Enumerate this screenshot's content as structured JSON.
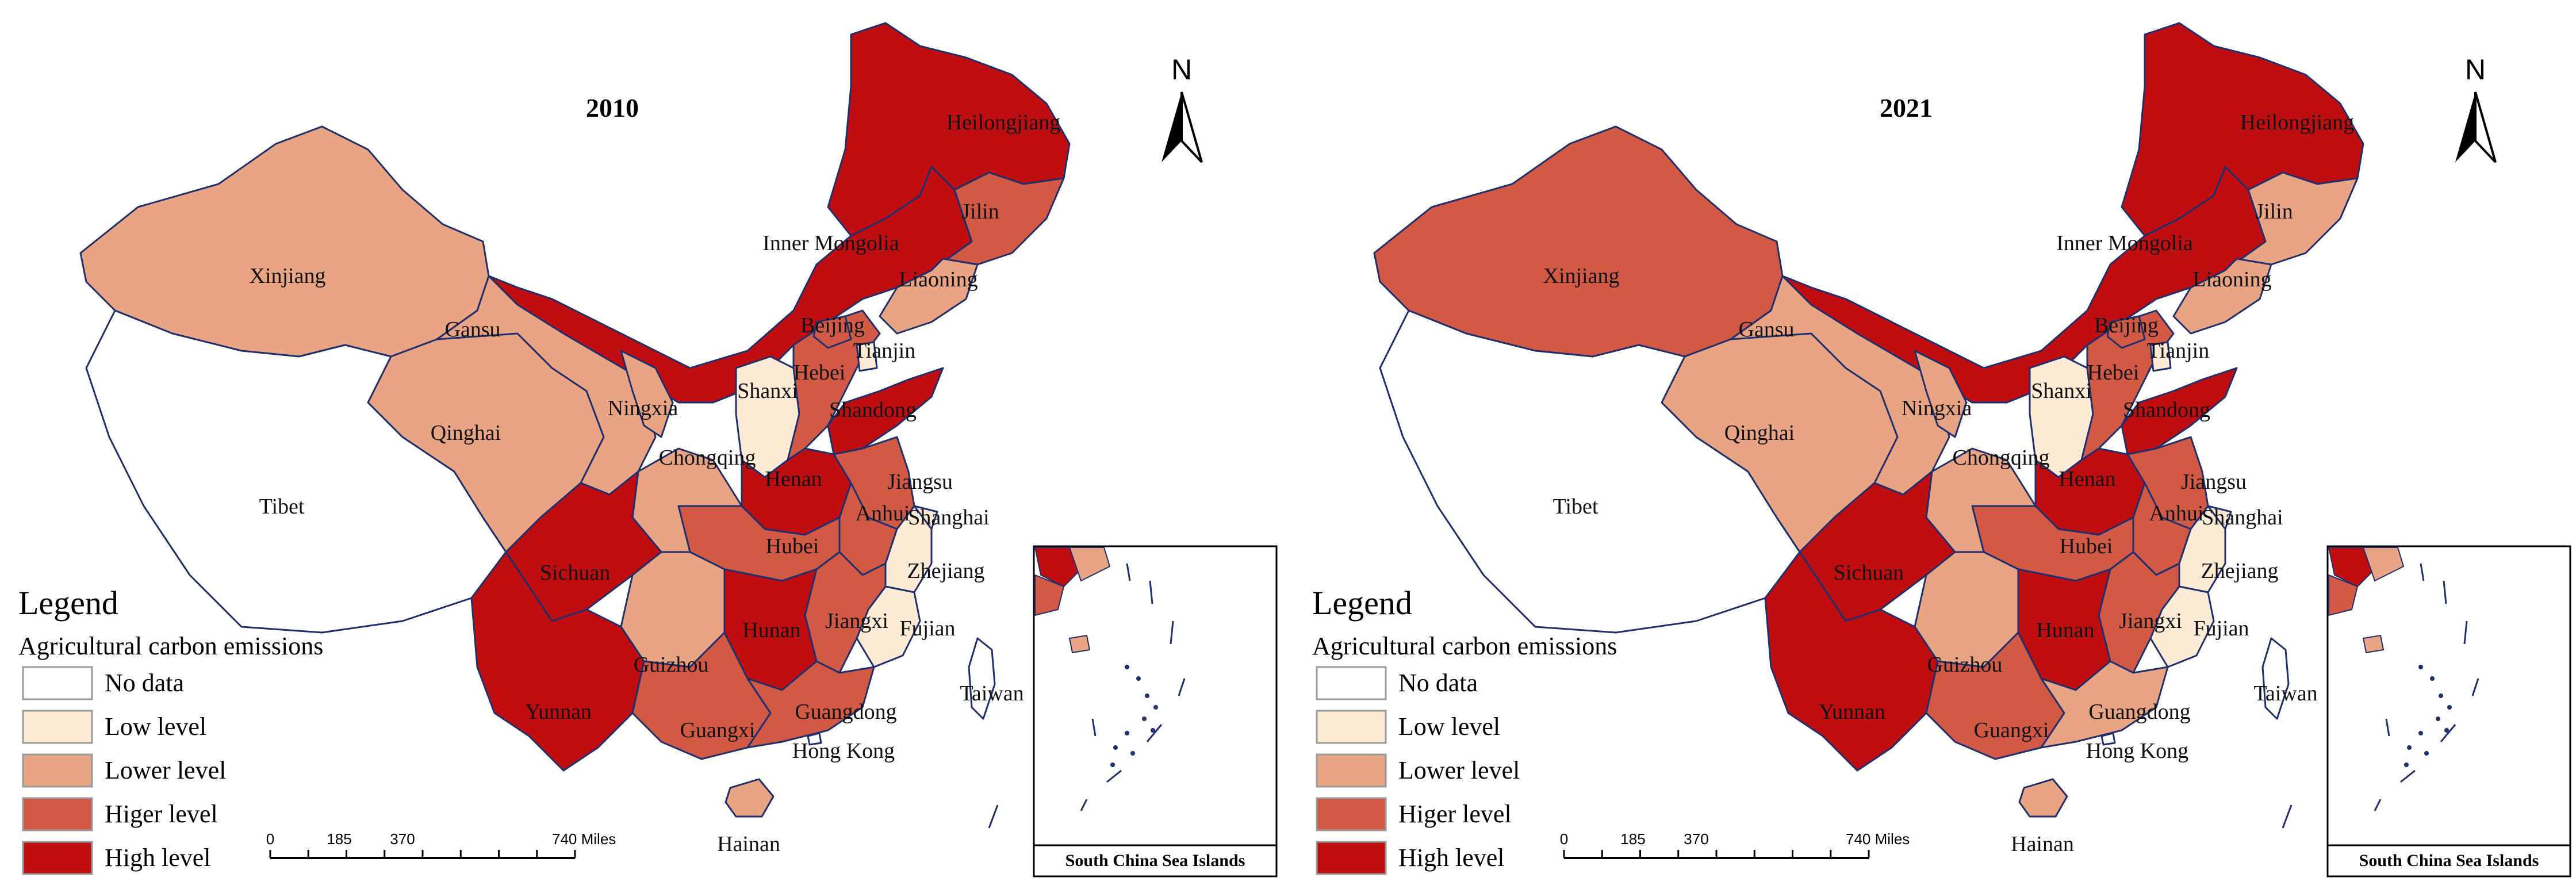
{
  "colors": {
    "no_data": "#ffffff",
    "low": "#fdebd6",
    "lower": "#e9a583",
    "higher": "#d25a45",
    "high": "#c00d10",
    "border": "#1f2f6e"
  },
  "legend": {
    "title": "Legend",
    "subtitle": "Agricultural carbon emissions",
    "items": [
      {
        "key": "no_data",
        "label": "No data"
      },
      {
        "key": "low",
        "label": "Low level"
      },
      {
        "key": "lower",
        "label": "Lower level"
      },
      {
        "key": "higher",
        "label": "Higer level"
      },
      {
        "key": "high",
        "label": "High level"
      }
    ]
  },
  "scale_bar": {
    "ticks": [
      "0",
      "185",
      "370",
      "740 Miles"
    ]
  },
  "north_label": "N",
  "inset_title": "South China Sea Islands",
  "maps": [
    {
      "year": "2010",
      "regions": {
        "Heilongjiang": "high",
        "Jilin": "higher",
        "Liaoning": "lower",
        "Inner Mongolia": "high",
        "Xinjiang": "lower",
        "Tibet": "no_data",
        "Qinghai": "lower",
        "Gansu": "lower",
        "Ningxia": "lower",
        "Shanxi": "low",
        "Beijing": "higher",
        "Tianjin": "low",
        "Hebei": "higher",
        "Shandong": "high",
        "Henan": "high",
        "Chongqing": "lower",
        "Sichuan": "high",
        "Hubei": "higher",
        "Anhui": "higher",
        "Jiangsu": "higher",
        "Shanghai": "low",
        "Zhejiang": "low",
        "Jiangxi": "higher",
        "Hunan": "high",
        "Guizhou": "lower",
        "Yunnan": "high",
        "Guangxi": "higher",
        "Guangdong": "higher",
        "Fujian": "low",
        "Taiwan": "no_data",
        "Hong Kong": "no_data",
        "Hainan": "lower"
      }
    },
    {
      "year": "2021",
      "regions": {
        "Heilongjiang": "high",
        "Jilin": "lower",
        "Liaoning": "lower",
        "Inner Mongolia": "high",
        "Xinjiang": "higher",
        "Tibet": "no_data",
        "Qinghai": "lower",
        "Gansu": "lower",
        "Ningxia": "lower",
        "Shanxi": "low",
        "Beijing": "higher",
        "Tianjin": "low",
        "Hebei": "higher",
        "Shandong": "high",
        "Henan": "high",
        "Chongqing": "lower",
        "Sichuan": "high",
        "Hubei": "higher",
        "Anhui": "higher",
        "Jiangsu": "higher",
        "Shanghai": "low",
        "Zhejiang": "low",
        "Jiangxi": "higher",
        "Hunan": "high",
        "Guizhou": "lower",
        "Yunnan": "high",
        "Guangxi": "higher",
        "Guangdong": "lower",
        "Fujian": "low",
        "Taiwan": "no_data",
        "Hong Kong": "no_data",
        "Hainan": "lower"
      }
    }
  ]
}
